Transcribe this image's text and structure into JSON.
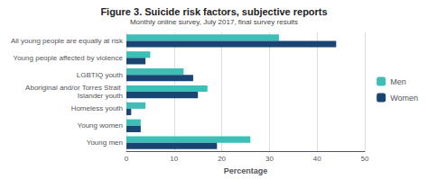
{
  "chart_data": {
    "type": "bar",
    "orientation": "horizontal",
    "title": "Figure 3. Suicide risk factors, subjective reports",
    "subtitle": "Monthly online survey, July 2017, final survey results",
    "xlabel": "Percentage",
    "categories": [
      "Young men",
      "Young women",
      "Homeless youth",
      "Aboriginal and/or Torres Strait Islander youth",
      "LGBTIQ youth",
      "Young people affected by violence",
      "All young people are equally at risk"
    ],
    "series": [
      {
        "name": "Men",
        "color": "#3dbfb8",
        "values": [
          26,
          3,
          4,
          17,
          12,
          5,
          32
        ]
      },
      {
        "name": "Women",
        "color": "#1a4472",
        "values": [
          19,
          3,
          1,
          15,
          14,
          4,
          44
        ]
      }
    ],
    "xlim": [
      0,
      50
    ],
    "xticks": [
      0,
      10,
      20,
      30,
      40,
      50
    ],
    "grid": true,
    "legend": "right"
  }
}
